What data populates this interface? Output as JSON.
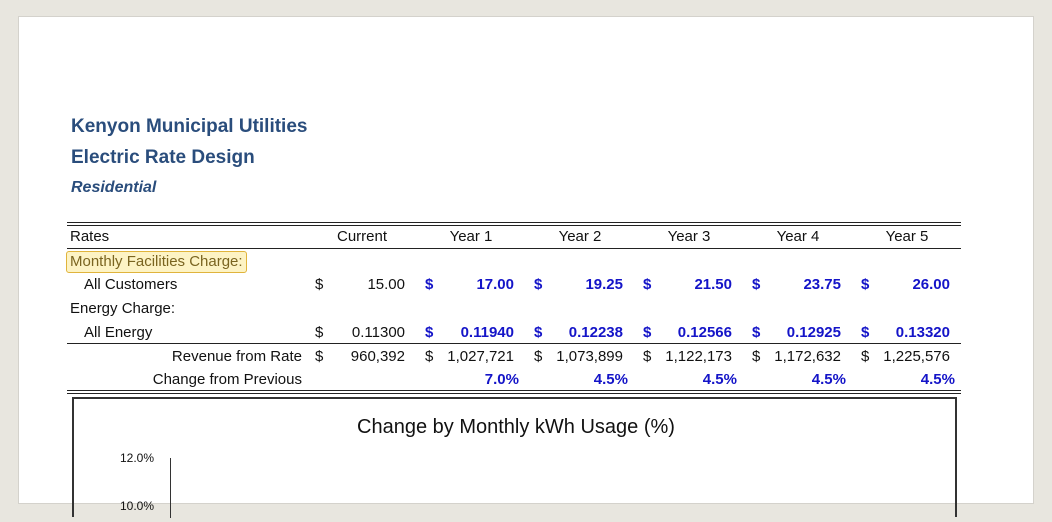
{
  "header": {
    "title": "Kenyon Municipal Utilities",
    "subtitle": "Electric Rate Design",
    "section": "Residential"
  },
  "table": {
    "columns": [
      "Rates",
      "Current",
      "Year 1",
      "Year 2",
      "Year 3",
      "Year 4",
      "Year 5"
    ],
    "rows": [
      {
        "label": "Monthly Facilities Charge:"
      },
      {
        "label": "All Customers",
        "cells": [
          {
            "currency": "$",
            "value": "15.00"
          },
          {
            "currency": "$",
            "value": "17.00"
          },
          {
            "currency": "$",
            "value": "19.25"
          },
          {
            "currency": "$",
            "value": "21.50"
          },
          {
            "currency": "$",
            "value": "23.75"
          },
          {
            "currency": "$",
            "value": "26.00"
          }
        ]
      },
      {
        "label": "Energy Charge:"
      },
      {
        "label": "All Energy",
        "cells": [
          {
            "currency": "$",
            "value": "0.11300"
          },
          {
            "currency": "$",
            "value": "0.11940"
          },
          {
            "currency": "$",
            "value": "0.12238"
          },
          {
            "currency": "$",
            "value": "0.12566"
          },
          {
            "currency": "$",
            "value": "0.12925"
          },
          {
            "currency": "$",
            "value": "0.13320"
          }
        ]
      },
      {
        "label": "Revenue from Rate",
        "cells": [
          {
            "currency": "$",
            "value": "960,392"
          },
          {
            "currency": "$",
            "value": "1,027,721"
          },
          {
            "currency": "$",
            "value": "1,073,899"
          },
          {
            "currency": "$",
            "value": "1,122,173"
          },
          {
            "currency": "$",
            "value": "1,172,632"
          },
          {
            "currency": "$",
            "value": "1,225,576"
          }
        ]
      },
      {
        "label": "Change from Previous",
        "cells": [
          null,
          {
            "value": "7.0%"
          },
          {
            "value": "4.5%"
          },
          {
            "value": "4.5%"
          },
          {
            "value": "4.5%"
          },
          {
            "value": "4.5%"
          }
        ]
      }
    ]
  },
  "chart": {
    "title": "Change by Monthly kWh Usage (%)",
    "yticks": [
      "12.0%",
      "10.0%"
    ]
  }
}
